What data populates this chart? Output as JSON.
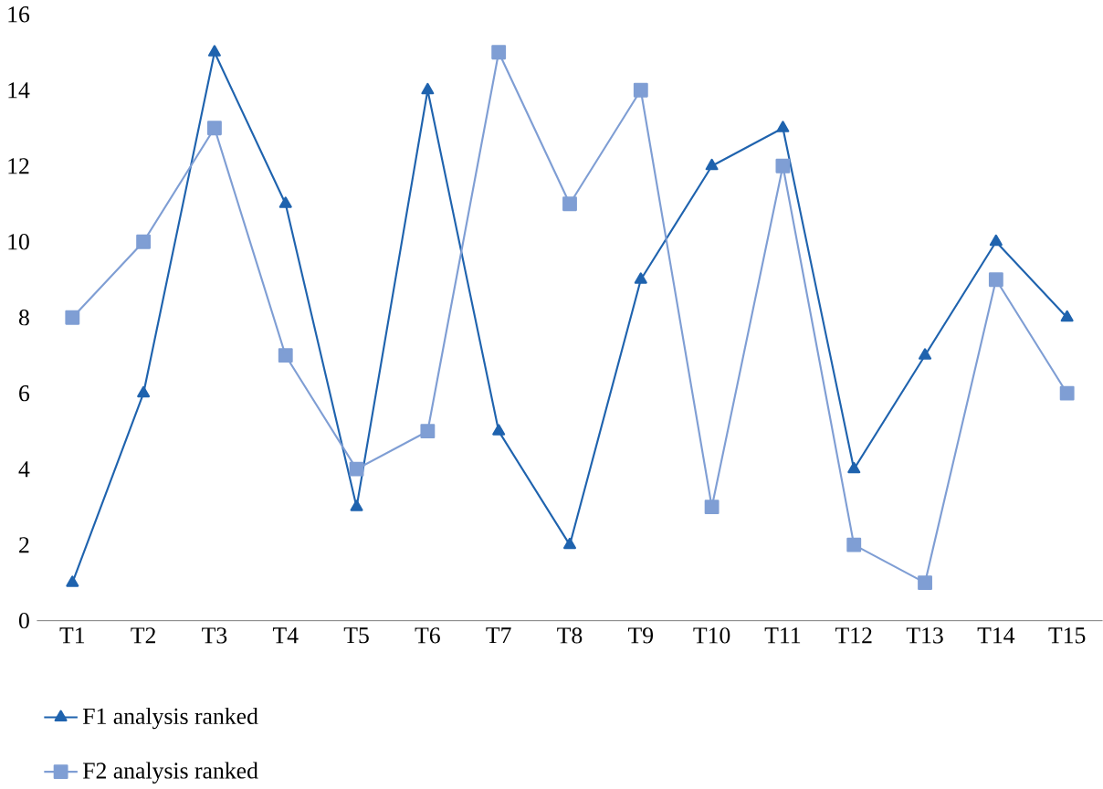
{
  "chart_data": {
    "type": "line",
    "categories": [
      "T1",
      "T2",
      "T3",
      "T4",
      "T5",
      "T6",
      "T7",
      "T8",
      "T9",
      "T10",
      "T11",
      "T12",
      "T13",
      "T14",
      "T15"
    ],
    "series": [
      {
        "name": "F1 analysis ranked",
        "color": "#1f63ae",
        "marker": "triangle",
        "values": [
          1,
          6,
          15,
          11,
          3,
          14,
          5,
          2,
          9,
          12,
          13,
          4,
          7,
          10,
          8
        ]
      },
      {
        "name": "F2 analysis ranked",
        "color": "#7f9ed4",
        "marker": "square",
        "values": [
          8,
          10,
          13,
          7,
          4,
          5,
          15,
          11,
          14,
          3,
          12,
          2,
          1,
          9,
          6
        ]
      }
    ],
    "ylim": [
      0,
      16
    ],
    "yticks": [
      0,
      2,
      4,
      6,
      8,
      10,
      12,
      14,
      16
    ],
    "legend": "bottom",
    "line_style": "solid"
  }
}
